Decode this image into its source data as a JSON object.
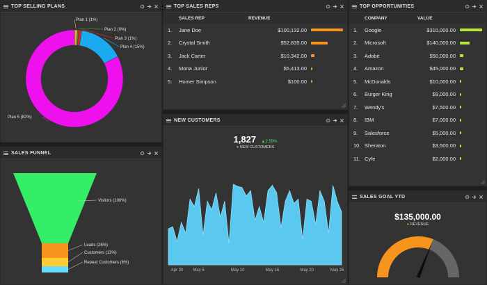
{
  "top_selling_plans": {
    "title": "TOP SELLING PLANS",
    "slices": [
      {
        "label": "Plan 1 (1%)",
        "value": 1,
        "color": "#e8a33c"
      },
      {
        "label": "Plan 2 (0%)",
        "value": 0.4,
        "color": "#2ca02c"
      },
      {
        "label": "Plan 3 (1%)",
        "value": 1,
        "color": "#d62728"
      },
      {
        "label": "Plan 4 (15%)",
        "value": 15,
        "color": "#1aaaf0"
      },
      {
        "label": "Plan 5 (82%)",
        "value": 82,
        "color": "#ee11ee"
      }
    ]
  },
  "top_sales_reps": {
    "title": "TOP SALES REPS",
    "col_rep": "SALES REP",
    "col_revenue": "REVENUE",
    "bar_color": "#f7941d",
    "rows": [
      {
        "n": "1.",
        "name": "Jane Doe",
        "revenue": "$100,132.00",
        "value": 100132
      },
      {
        "n": "2.",
        "name": "Crystal Smith",
        "revenue": "$52,835.00",
        "value": 52835
      },
      {
        "n": "3.",
        "name": "Jack Carter",
        "revenue": "$10,342.00",
        "value": 10342
      },
      {
        "n": "4.",
        "name": "Mona Junior",
        "revenue": "$5,413.00",
        "value": 5413
      },
      {
        "n": "5.",
        "name": "Homer Simpson",
        "revenue": "$100.00",
        "value": 100
      }
    ]
  },
  "top_opportunities": {
    "title": "TOP OPPORTUNITIES",
    "col_company": "COMPANY",
    "col_value": "VALUE",
    "bar_color": "#b6e83a",
    "rows": [
      {
        "n": "1.",
        "name": "Google",
        "value_text": "$310,000.00",
        "value": 310000
      },
      {
        "n": "2.",
        "name": "Microsoft",
        "value_text": "$140,000.00",
        "value": 140000
      },
      {
        "n": "3.",
        "name": "Adobe",
        "value_text": "$50,000.00",
        "value": 50000
      },
      {
        "n": "4.",
        "name": "Amazon",
        "value_text": "$45,000.00",
        "value": 45000
      },
      {
        "n": "5.",
        "name": "McDonalds",
        "value_text": "$10,000.00",
        "value": 10000
      },
      {
        "n": "6.",
        "name": "Burger King",
        "value_text": "$9,000.00",
        "value": 9000
      },
      {
        "n": "7.",
        "name": "Wendy's",
        "value_text": "$7,500.00",
        "value": 7500
      },
      {
        "n": "8.",
        "name": "IBM",
        "value_text": "$7,000.00",
        "value": 7000
      },
      {
        "n": "9.",
        "name": "Salesforce",
        "value_text": "$5,000.00",
        "value": 5000
      },
      {
        "n": "10.",
        "name": "Sheraton",
        "value_text": "$3,500.00",
        "value": 3500
      },
      {
        "n": "11.",
        "name": "Cyfe",
        "value_text": "$2,000.00",
        "value": 2000
      }
    ]
  },
  "sales_funnel": {
    "title": "SALES FUNNEL",
    "stages": [
      {
        "label": "Visitors (100%)",
        "value": 100,
        "color": "#33ee66"
      },
      {
        "label": "Leads (26%)",
        "value": 26,
        "color": "#f7941d"
      },
      {
        "label": "Customers (13%)",
        "value": 13,
        "color": "#ffcc33"
      },
      {
        "label": "Repeat Customers (6%)",
        "value": 6,
        "color": "#66ddff"
      }
    ]
  },
  "new_customers": {
    "title": "NEW CUSTOMERS",
    "total": "1,827",
    "change": "2.59%",
    "legend": "NEW CUSTOMERS",
    "color": "#5bc8ef",
    "chart_data": {
      "type": "area",
      "x_ticks": [
        "Apr 30",
        "May 5",
        "May 10",
        "May 15",
        "May 20",
        "May 25"
      ],
      "values": [
        34,
        36,
        22,
        40,
        30,
        62,
        55,
        72,
        28,
        60,
        52,
        68,
        45,
        60,
        20,
        76,
        74,
        73,
        65,
        70,
        42,
        55,
        40,
        70,
        75,
        68,
        35,
        60,
        70,
        58,
        62,
        24,
        62,
        60,
        38,
        70,
        60,
        30,
        75,
        60,
        50
      ]
    }
  },
  "sales_goal": {
    "title": "SALES GOAL YTD",
    "amount": "$135,000.00",
    "legend": "REVENUE",
    "progress": 0.62,
    "color": "#f7941d",
    "track_color": "#666666"
  }
}
